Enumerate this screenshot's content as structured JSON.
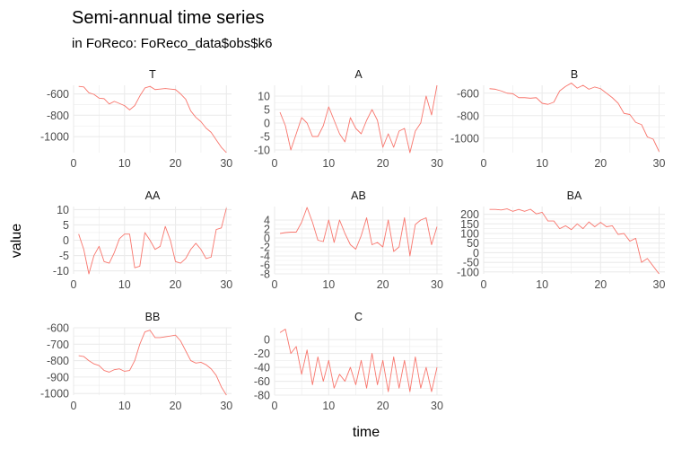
{
  "chart_data": {
    "type": "line",
    "title": "Semi-annual time series",
    "subtitle": "in FoReco: FoReco_data$obs$k6",
    "xlabel": "time",
    "ylabel": "value",
    "line_color": "#f8766d",
    "grid": true,
    "x_ticks": [
      0,
      10,
      20,
      30
    ],
    "xlim": [
      0,
      31
    ],
    "x": [
      1,
      2,
      3,
      4,
      5,
      6,
      7,
      8,
      9,
      10,
      11,
      12,
      13,
      14,
      15,
      16,
      17,
      18,
      19,
      20,
      21,
      22,
      23,
      24,
      25,
      26,
      27,
      28,
      29,
      30
    ],
    "panels": [
      {
        "name": "T",
        "ylim": [
          -1150,
          -520
        ],
        "y_ticks": [
          -600,
          -800,
          -1000
        ],
        "values": [
          -530,
          -535,
          -590,
          -605,
          -640,
          -645,
          -695,
          -670,
          -690,
          -710,
          -750,
          -710,
          -620,
          -545,
          -530,
          -560,
          -555,
          -550,
          -555,
          -560,
          -600,
          -650,
          -760,
          -820,
          -860,
          -920,
          -960,
          -1030,
          -1100,
          -1150
        ]
      },
      {
        "name": "A",
        "ylim": [
          -11,
          14
        ],
        "y_ticks": [
          10,
          5,
          0,
          -5,
          -10
        ],
        "values": [
          4,
          -1,
          -10,
          -4,
          2,
          0,
          -5,
          -5,
          -1,
          6,
          1,
          -4,
          -7,
          2,
          -2,
          -4,
          1,
          5,
          1,
          -9,
          -4,
          -9,
          -3,
          -2,
          -11,
          -3,
          0,
          10,
          3,
          14
        ]
      },
      {
        "name": "B",
        "ylim": [
          -1130,
          -530
        ],
        "y_ticks": [
          -600,
          -800,
          -1000
        ],
        "values": [
          -560,
          -565,
          -580,
          -600,
          -605,
          -640,
          -640,
          -645,
          -640,
          -690,
          -700,
          -680,
          -580,
          -540,
          -510,
          -555,
          -530,
          -565,
          -545,
          -560,
          -600,
          -640,
          -690,
          -780,
          -790,
          -860,
          -880,
          -990,
          -1010,
          -1120
        ]
      },
      {
        "name": "AA",
        "ylim": [
          -11,
          11
        ],
        "y_ticks": [
          10,
          5,
          0,
          -5,
          -10
        ],
        "values": [
          2,
          -3,
          -11,
          -5,
          -2,
          -7,
          -7.5,
          -4,
          0.5,
          2,
          2,
          -9,
          -8.5,
          2.5,
          0,
          -3,
          -2,
          4.5,
          0,
          -7,
          -7.5,
          -6,
          -3,
          -1,
          -3,
          -6,
          -5.5,
          3.5,
          4,
          10.5
        ]
      },
      {
        "name": "AB",
        "ylim": [
          -8,
          7
        ],
        "y_ticks": [
          4,
          2,
          0,
          -2,
          -4,
          -6,
          -8
        ],
        "values": [
          1,
          1.2,
          1.3,
          1.3,
          3.5,
          6.8,
          3.5,
          -0.5,
          -0.8,
          4,
          -1,
          4,
          1,
          -1.5,
          -2.5,
          0.5,
          4.5,
          -1.5,
          -1,
          -2,
          4,
          -3,
          -2,
          4.5,
          -4,
          3,
          4,
          4.5,
          -1.5,
          2.5
        ]
      },
      {
        "name": "BA",
        "ylim": [
          -110,
          240
        ],
        "y_ticks": [
          200,
          150,
          100,
          50,
          0,
          -50,
          -100
        ],
        "values": [
          225,
          225,
          222,
          228,
          215,
          225,
          215,
          226,
          202,
          210,
          165,
          165,
          125,
          140,
          120,
          150,
          125,
          160,
          135,
          158,
          135,
          140,
          95,
          100,
          60,
          75,
          -50,
          -30,
          -70,
          -110
        ]
      },
      {
        "name": "BB",
        "ylim": [
          -1010,
          -600
        ],
        "y_ticks": [
          -600,
          -700,
          -800,
          -900,
          -1000
        ],
        "values": [
          -770,
          -775,
          -800,
          -820,
          -830,
          -860,
          -870,
          -855,
          -850,
          -865,
          -860,
          -800,
          -700,
          -625,
          -615,
          -660,
          -660,
          -655,
          -650,
          -645,
          -680,
          -740,
          -800,
          -815,
          -810,
          -825,
          -850,
          -890,
          -960,
          -1010
        ]
      },
      {
        "name": "C",
        "ylim": [
          -80,
          17
        ],
        "y_ticks": [
          0,
          -20,
          -40,
          -60,
          -80
        ],
        "values": [
          10,
          15,
          -20,
          -10,
          -50,
          -15,
          -65,
          -25,
          -60,
          -30,
          -70,
          -50,
          -60,
          -40,
          -65,
          -30,
          -70,
          -20,
          -65,
          -30,
          -75,
          -25,
          -70,
          -30,
          -75,
          -25,
          -70,
          -40,
          -75,
          -40
        ]
      }
    ]
  }
}
